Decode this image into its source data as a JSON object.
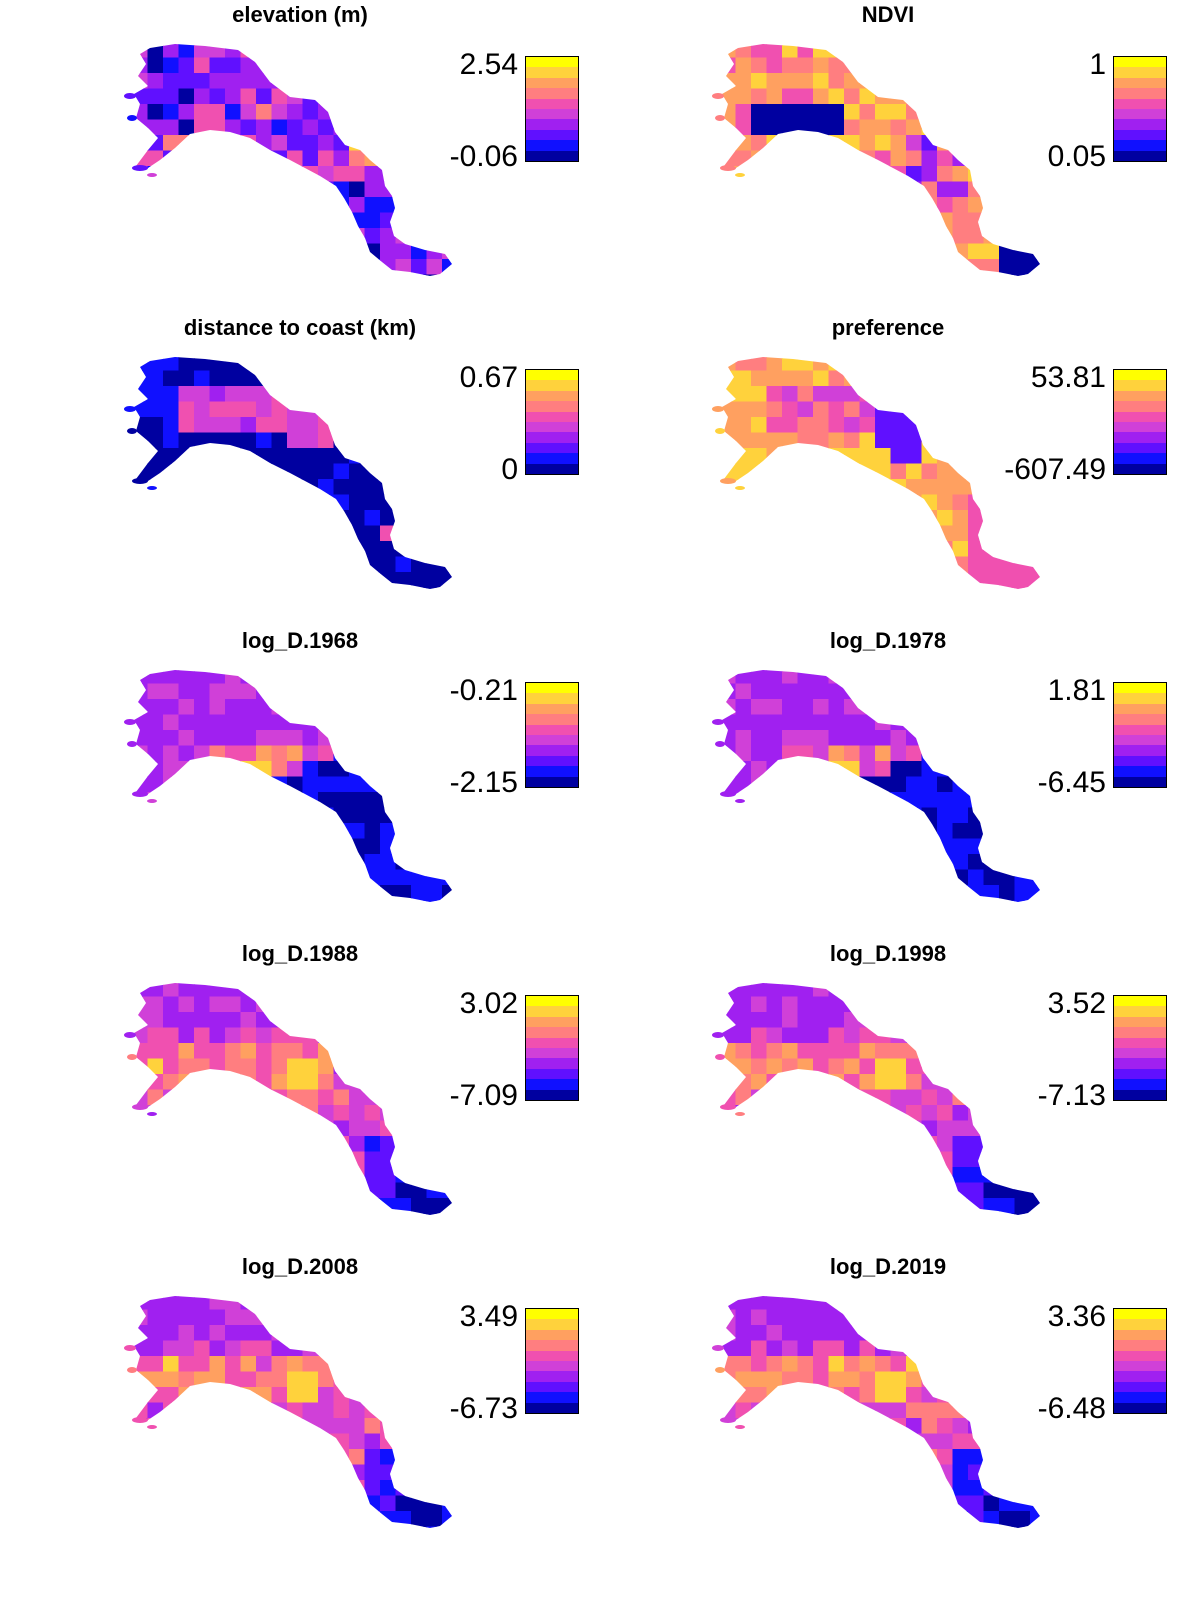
{
  "palette": [
    "#FFFF00",
    "#FFD23C",
    "#FFA060",
    "#FF7E80",
    "#F050B0",
    "#D040D8",
    "#A020F0",
    "#6010FF",
    "#1010FF",
    "#0000A0"
  ],
  "chart_data": [
    {
      "type": "heatmap",
      "title": "elevation (m)",
      "legend_max": "2.54",
      "legend_min": "-0.06",
      "pattern": "elevation"
    },
    {
      "type": "heatmap",
      "title": "NDVI",
      "legend_max": "1",
      "legend_min": "0.05",
      "pattern": "ndvi"
    },
    {
      "type": "heatmap",
      "title": "distance to coast (km)",
      "legend_max": "0.67",
      "legend_min": "0",
      "pattern": "distance"
    },
    {
      "type": "heatmap",
      "title": "preference",
      "legend_max": "53.81",
      "legend_min": "-607.49",
      "pattern": "preference"
    },
    {
      "type": "heatmap",
      "title": "log_D.1968",
      "legend_max": "-0.21",
      "legend_min": "-2.15",
      "pattern": "logd_early"
    },
    {
      "type": "heatmap",
      "title": "log_D.1978",
      "legend_max": "1.81",
      "legend_min": "-6.45",
      "pattern": "logd_early"
    },
    {
      "type": "heatmap",
      "title": "log_D.1988",
      "legend_max": "3.02",
      "legend_min": "-7.09",
      "pattern": "logd"
    },
    {
      "type": "heatmap",
      "title": "log_D.1998",
      "legend_max": "3.52",
      "legend_min": "-7.13",
      "pattern": "logd"
    },
    {
      "type": "heatmap",
      "title": "log_D.2008",
      "legend_max": "3.49",
      "legend_min": "-6.73",
      "pattern": "logd"
    },
    {
      "type": "heatmap",
      "title": "log_D.2019",
      "legend_max": "3.36",
      "legend_min": "-6.48",
      "pattern": "logd"
    }
  ]
}
